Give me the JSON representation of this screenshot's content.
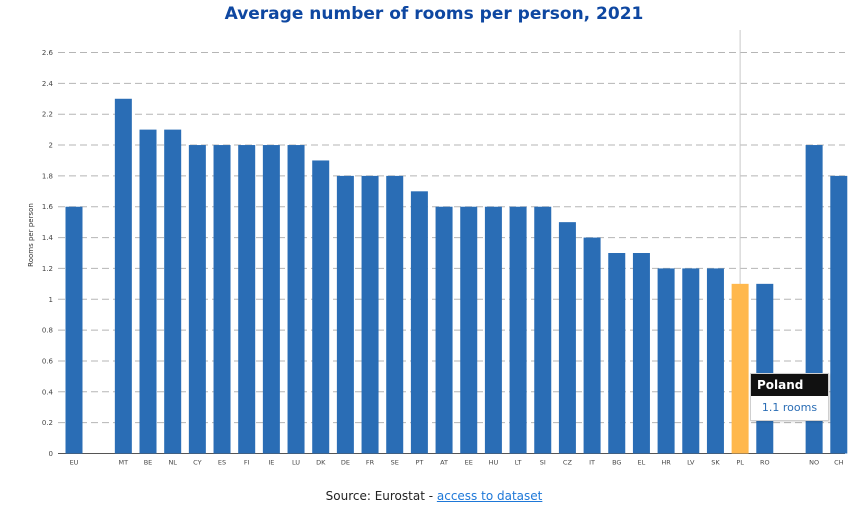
{
  "chart_data": {
    "type": "bar",
    "title": "Average number of rooms per person, 2021",
    "xlabel": "",
    "ylabel": "Rooms per person",
    "ylim": [
      0,
      2.6
    ],
    "yticks": [
      0,
      0.2,
      0.4,
      0.6,
      0.8,
      1,
      1.2,
      1.4,
      1.6,
      1.8,
      2,
      2.2,
      2.4,
      2.6
    ],
    "grid": true,
    "categories": [
      "EU",
      "",
      "MT",
      "BE",
      "NL",
      "CY",
      "ES",
      "FI",
      "IE",
      "LU",
      "DK",
      "DE",
      "FR",
      "SE",
      "PT",
      "AT",
      "EE",
      "HU",
      "LT",
      "SI",
      "CZ",
      "IT",
      "BG",
      "EL",
      "HR",
      "LV",
      "SK",
      "PL",
      "RO",
      "",
      "NO",
      "CH"
    ],
    "values": [
      1.6,
      null,
      2.3,
      2.1,
      2.1,
      2.0,
      2.0,
      2.0,
      2.0,
      2.0,
      1.9,
      1.8,
      1.8,
      1.8,
      1.7,
      1.6,
      1.6,
      1.6,
      1.6,
      1.6,
      1.5,
      1.4,
      1.3,
      1.3,
      1.2,
      1.2,
      1.2,
      1.1,
      1.1,
      null,
      2.0,
      1.8
    ],
    "highlight": "PL",
    "colors": {
      "bar": "#2a6db5",
      "highlight": "#ffb84d",
      "grid": "#b5b5b5",
      "axis": "#555555",
      "crosshair": "#c8c8c8"
    }
  },
  "tooltip": {
    "country": "Poland",
    "value_text": "1.1 rooms"
  },
  "source": {
    "prefix": "Source: Eurostat - ",
    "link_text": "access to dataset"
  }
}
